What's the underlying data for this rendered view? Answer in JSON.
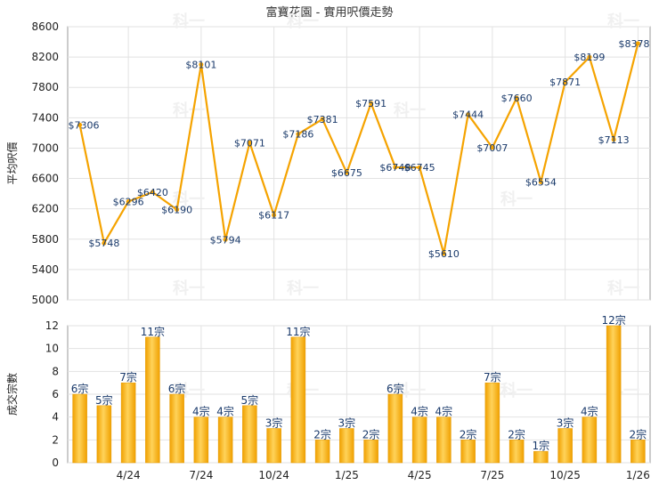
{
  "chart_data": [
    {
      "type": "line",
      "title": "富寶花園 - 實用呎價走勢",
      "ylabel": "平均呎價",
      "ylim": [
        5000,
        8600
      ],
      "yticks": [
        5000,
        5400,
        5800,
        6200,
        6600,
        7000,
        7400,
        7800,
        8200,
        8600
      ],
      "grid": true,
      "color": "#f5a300",
      "label_prefix": "$",
      "series": [
        {
          "values": [
            7306,
            5748,
            6296,
            6420,
            6190,
            8101,
            5794,
            7071,
            6117,
            7186,
            7381,
            6675,
            7591,
            6748,
            6745,
            5610,
            7444,
            7007,
            7660,
            6554,
            7871,
            8199,
            7113,
            8378
          ]
        }
      ]
    },
    {
      "type": "bar",
      "ylabel": "成交宗數",
      "ylim": [
        0,
        12
      ],
      "yticks": [
        0,
        2,
        4,
        6,
        8,
        10,
        12
      ],
      "grid": true,
      "color": "#f5b21a",
      "label_suffix": "宗",
      "x_tick_labels": [
        {
          "index": 2,
          "label": "4/24"
        },
        {
          "index": 5,
          "label": "7/24"
        },
        {
          "index": 8,
          "label": "10/24"
        },
        {
          "index": 11,
          "label": "1/25"
        },
        {
          "index": 14,
          "label": "4/25"
        },
        {
          "index": 17,
          "label": "7/25"
        },
        {
          "index": 20,
          "label": "10/25"
        },
        {
          "index": 23,
          "label": "1/26"
        }
      ],
      "series": [
        {
          "values": [
            6,
            5,
            7,
            11,
            6,
            4,
            4,
            5,
            3,
            11,
            2,
            3,
            2,
            6,
            4,
            4,
            2,
            7,
            2,
            1,
            3,
            4,
            12,
            2
          ]
        }
      ]
    }
  ],
  "watermark": "科一"
}
